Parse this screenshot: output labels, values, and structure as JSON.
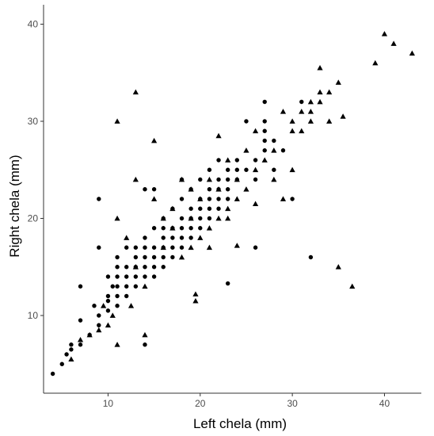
{
  "chart_data": {
    "type": "scatter",
    "xlabel": "Left chela (mm)",
    "ylabel": "Right chela (mm)",
    "xlim": [
      3,
      44
    ],
    "ylim": [
      2,
      42
    ],
    "xticks": [
      10,
      20,
      30,
      40
    ],
    "yticks": [
      10,
      20,
      30,
      40
    ],
    "xtick_labels": [
      "10",
      "20",
      "30",
      "40"
    ],
    "ytick_labels": [
      "10",
      "20",
      "30",
      "40"
    ],
    "grid": false,
    "legend": "none",
    "series": [
      {
        "marker": "circle",
        "color": "#000000",
        "points": [
          [
            4,
            4
          ],
          [
            5,
            5
          ],
          [
            5.5,
            6
          ],
          [
            6,
            6.5
          ],
          [
            6,
            7
          ],
          [
            7,
            7
          ],
          [
            7,
            9.5
          ],
          [
            7,
            13
          ],
          [
            8,
            8
          ],
          [
            8.5,
            11
          ],
          [
            9,
            9
          ],
          [
            9,
            10
          ],
          [
            9,
            17
          ],
          [
            9,
            22
          ],
          [
            10,
            10.5
          ],
          [
            10,
            11.5
          ],
          [
            10,
            12
          ],
          [
            10,
            14
          ],
          [
            10.5,
            13
          ],
          [
            11,
            11
          ],
          [
            11,
            12
          ],
          [
            11,
            13
          ],
          [
            11,
            14
          ],
          [
            11,
            15
          ],
          [
            11,
            16
          ],
          [
            12,
            12
          ],
          [
            12,
            13
          ],
          [
            12,
            14
          ],
          [
            12,
            15
          ],
          [
            12,
            17
          ],
          [
            13,
            13
          ],
          [
            13,
            14
          ],
          [
            13,
            15
          ],
          [
            13,
            16
          ],
          [
            13,
            17
          ],
          [
            14,
            7
          ],
          [
            14,
            14
          ],
          [
            14,
            15
          ],
          [
            14,
            16
          ],
          [
            14,
            17
          ],
          [
            14,
            18
          ],
          [
            15,
            14
          ],
          [
            15,
            15
          ],
          [
            15,
            16
          ],
          [
            15,
            17
          ],
          [
            15,
            19
          ],
          [
            16,
            15
          ],
          [
            16,
            16
          ],
          [
            16,
            17
          ],
          [
            16,
            18
          ],
          [
            16,
            19
          ],
          [
            16,
            20
          ],
          [
            17,
            16
          ],
          [
            17,
            17
          ],
          [
            17,
            18
          ],
          [
            17,
            19
          ],
          [
            17,
            21
          ],
          [
            18,
            17
          ],
          [
            18,
            18
          ],
          [
            18,
            19
          ],
          [
            18,
            20
          ],
          [
            18,
            22
          ],
          [
            18,
            24
          ],
          [
            19,
            18
          ],
          [
            19,
            19
          ],
          [
            19,
            20
          ],
          [
            19,
            21
          ],
          [
            19,
            23
          ],
          [
            20,
            19
          ],
          [
            20,
            20
          ],
          [
            20,
            21
          ],
          [
            20,
            22
          ],
          [
            20,
            24
          ],
          [
            21,
            20
          ],
          [
            21,
            21
          ],
          [
            21,
            22
          ],
          [
            21,
            23
          ],
          [
            21,
            25
          ],
          [
            22,
            21
          ],
          [
            22,
            22
          ],
          [
            22,
            23
          ],
          [
            22,
            24
          ],
          [
            22,
            26
          ],
          [
            23,
            13.3
          ],
          [
            23,
            22
          ],
          [
            23,
            23
          ],
          [
            23,
            24
          ],
          [
            23,
            25
          ],
          [
            24,
            24
          ],
          [
            24,
            25
          ],
          [
            24,
            26
          ],
          [
            25,
            25
          ],
          [
            25,
            30
          ],
          [
            26,
            17
          ],
          [
            26,
            24
          ],
          [
            26,
            26
          ],
          [
            27,
            27
          ],
          [
            27,
            28
          ],
          [
            27,
            29
          ],
          [
            27,
            30
          ],
          [
            27,
            32
          ],
          [
            28,
            25
          ],
          [
            28,
            28
          ],
          [
            29,
            27
          ],
          [
            30,
            22
          ],
          [
            31,
            32
          ],
          [
            32,
            16
          ],
          [
            14,
            23
          ],
          [
            15,
            23
          ]
        ]
      },
      {
        "marker": "triangle",
        "color": "#000000",
        "points": [
          [
            6,
            5.5
          ],
          [
            7,
            7.5
          ],
          [
            8,
            8
          ],
          [
            9,
            8.5
          ],
          [
            9.5,
            11
          ],
          [
            10,
            9
          ],
          [
            10.5,
            10
          ],
          [
            11,
            7
          ],
          [
            11,
            20
          ],
          [
            11,
            30
          ],
          [
            12,
            18
          ],
          [
            12.5,
            11
          ],
          [
            13,
            15
          ],
          [
            13,
            24
          ],
          [
            13,
            33
          ],
          [
            14,
            8
          ],
          [
            14,
            13
          ],
          [
            15,
            22
          ],
          [
            15,
            28
          ],
          [
            16,
            17
          ],
          [
            16,
            20
          ],
          [
            17,
            19
          ],
          [
            17,
            21
          ],
          [
            18,
            16
          ],
          [
            18,
            24
          ],
          [
            19,
            17
          ],
          [
            19,
            20
          ],
          [
            19,
            23
          ],
          [
            19.5,
            11.5
          ],
          [
            19.5,
            12.2
          ],
          [
            20,
            18
          ],
          [
            20,
            22
          ],
          [
            21,
            19
          ],
          [
            21,
            24
          ],
          [
            22,
            23
          ],
          [
            22,
            28.5
          ],
          [
            23,
            21
          ],
          [
            23,
            26
          ],
          [
            24,
            17.2
          ],
          [
            24,
            24
          ],
          [
            25,
            27
          ],
          [
            26,
            21.5
          ],
          [
            26,
            29
          ],
          [
            27,
            26
          ],
          [
            28,
            24
          ],
          [
            29,
            22
          ],
          [
            29,
            31
          ],
          [
            30,
            25
          ],
          [
            30,
            30
          ],
          [
            31,
            29
          ],
          [
            31,
            31
          ],
          [
            32,
            31
          ],
          [
            32,
            32
          ],
          [
            33,
            32
          ],
          [
            33,
            35.5
          ],
          [
            34,
            33
          ],
          [
            34,
            30
          ],
          [
            35,
            34
          ],
          [
            35,
            15
          ],
          [
            35.5,
            30.5
          ],
          [
            36.5,
            13
          ],
          [
            39,
            36
          ],
          [
            40,
            39
          ],
          [
            41,
            38
          ],
          [
            43,
            37
          ],
          [
            30,
            29
          ],
          [
            32,
            30
          ],
          [
            33,
            33
          ],
          [
            28,
            27
          ],
          [
            26,
            25
          ],
          [
            25,
            23
          ],
          [
            24,
            22
          ],
          [
            23,
            20
          ],
          [
            22,
            20
          ],
          [
            21,
            17
          ]
        ]
      }
    ]
  }
}
